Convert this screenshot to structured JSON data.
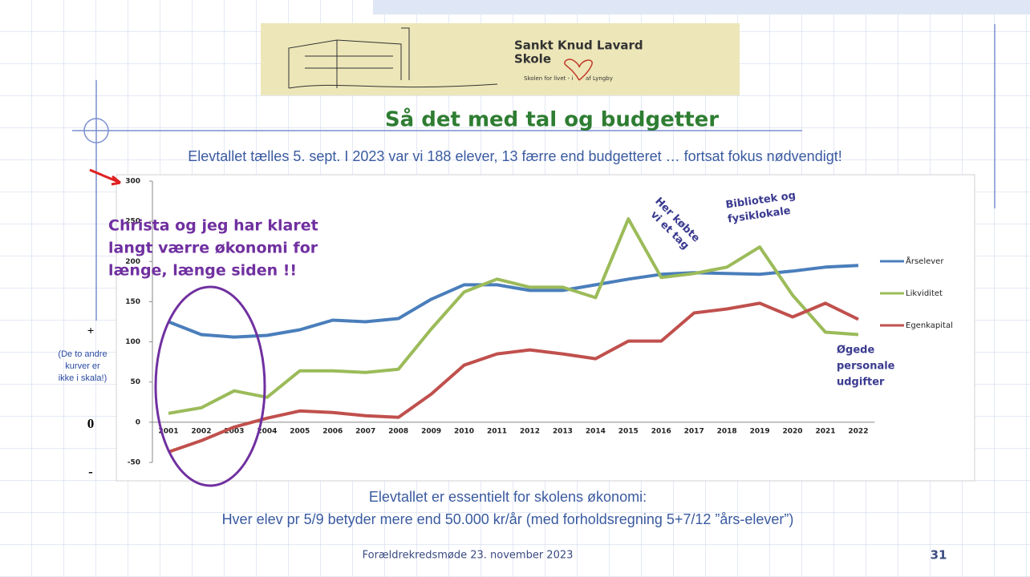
{
  "slide": {
    "logo_name": "Sankt Knud Lavard",
    "logo_school": "Skole",
    "logo_tagline_start": "Skolen for livet - i",
    "logo_tagline_end": "af Lyngby",
    "title": "Så det med tal og budgetter",
    "subtitle": "Elevtallet tælles 5. sept. I 2023 var vi 188 elever, 13 færre end budgetteret … fortsat fokus nødvendigt!",
    "side_plus": "+",
    "side_note": [
      "(De to andre",
      "kurver er",
      "ikke i skala!)"
    ],
    "side_zero": "0",
    "side_minus": "-",
    "bottom_text": [
      "Elevtallet er essentielt for skolens økonomi:",
      "Hver elev pr 5/9 betyder mere end 50.000 kr/år (med forholdsregning 5+7/12 ”års-elever”)"
    ],
    "footer": "Forældrekredsmøde 23. november 2023",
    "page_number": "31"
  },
  "chart_data": {
    "type": "line",
    "categories": [
      "2001",
      "2002",
      "2003",
      "2004",
      "2005",
      "2006",
      "2007",
      "2008",
      "2009",
      "2010",
      "2011",
      "2012",
      "2013",
      "2014",
      "2015",
      "2016",
      "2017",
      "2018",
      "2019",
      "2020",
      "2021",
      "2022"
    ],
    "series": [
      {
        "name": "Årselever",
        "color": "#4a7ebb",
        "values": [
          125,
          109,
          106,
          108,
          115,
          127,
          125,
          129,
          153,
          171,
          171,
          164,
          164,
          171,
          178,
          184,
          186,
          185,
          184,
          188,
          193,
          195
        ]
      },
      {
        "name": "Likviditet",
        "color": "#9bbb59",
        "values": [
          11,
          18,
          39,
          31,
          64,
          64,
          62,
          66,
          116,
          162,
          178,
          168,
          168,
          155,
          253,
          180,
          185,
          193,
          218,
          158,
          112,
          109
        ]
      },
      {
        "name": "Egenkapital",
        "color": "#c0504d",
        "values": [
          -37,
          -23,
          -6,
          5,
          14,
          12,
          8,
          6,
          35,
          71,
          85,
          90,
          85,
          79,
          101,
          101,
          136,
          141,
          148,
          131,
          148,
          128
        ]
      }
    ],
    "ylim": [
      -50,
      300
    ],
    "yticks": [
      -50,
      0,
      50,
      100,
      150,
      200,
      250,
      300
    ],
    "legend": "right",
    "grid": false,
    "annotations": {
      "christa": [
        "Christa og jeg har klaret",
        "langt værre økonomi for",
        "længe, længe siden !!"
      ],
      "tag": [
        "Her købte",
        "vi et tag"
      ],
      "bibliotek": [
        "Bibliotek og",
        "fysiklokale"
      ],
      "personale": [
        "Øgede",
        "personale",
        "udgifter"
      ]
    }
  }
}
